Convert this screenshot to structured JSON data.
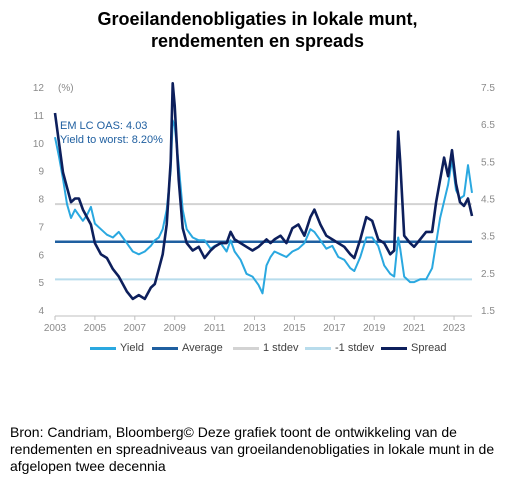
{
  "title_line1": "Groeilandenobligaties in lokale munt,",
  "title_line2": "rendementen en spreads",
  "annotation_oas": "EM LC OAS: 4.03",
  "annotation_ytw": "Yield to worst: 8.20%",
  "y_unit_left": "(%)",
  "source_text": "Bron: Candriam, Bloomberg© Deze grafiek toont de ontwikkeling van de rendementen en spreadniveaus van groeilandenobligaties in lokale munt in de afgelopen twee decennia",
  "colors": {
    "yield": "#2aa8e0",
    "average": "#1f5fa0",
    "plus_stdev": "#d3d3d3",
    "minus_stdev": "#b8dcec",
    "spread": "#0d1f5c",
    "tick_text": "#8a8a8a"
  },
  "legend": [
    {
      "key": "yield",
      "label": "Yield"
    },
    {
      "key": "average",
      "label": "Average"
    },
    {
      "key": "plus_stdev",
      "label": "1 stdev"
    },
    {
      "key": "minus_stdev",
      "label": "-1 stdev"
    },
    {
      "key": "spread",
      "label": "Spread"
    }
  ],
  "chart_data": {
    "type": "line",
    "title": "Groeilandenobligaties in lokale munt, rendementen en spreads",
    "x_ticks": [
      2003,
      2005,
      2007,
      2009,
      2011,
      2013,
      2015,
      2017,
      2019,
      2021,
      2023
    ],
    "xlim": [
      2003,
      2023.9
    ],
    "ylim_left": [
      4,
      12
    ],
    "ylim_right": [
      1.5,
      7.5
    ],
    "y_ticks_left": [
      4,
      5,
      6,
      7,
      8,
      9,
      10,
      11,
      12
    ],
    "y_ticks_right": [
      1.5,
      2.5,
      3.5,
      4.5,
      5.5,
      6.5,
      7.5
    ],
    "reference_lines": [
      {
        "key": "average",
        "name": "Average",
        "y_left": 6.45
      },
      {
        "key": "plus_stdev",
        "name": "1 stdev",
        "y_left": 7.8
      },
      {
        "key": "minus_stdev",
        "name": "-1 stdev",
        "y_left": 5.1
      }
    ],
    "series": [
      {
        "key": "yield",
        "name": "Yield",
        "axis": "left",
        "x": [
          2003.0,
          2003.2,
          2003.4,
          2003.6,
          2003.8,
          2004.0,
          2004.2,
          2004.4,
          2004.6,
          2004.8,
          2005.0,
          2005.3,
          2005.6,
          2005.9,
          2006.2,
          2006.4,
          2006.6,
          2006.9,
          2007.2,
          2007.5,
          2007.8,
          2008.0,
          2008.2,
          2008.4,
          2008.6,
          2008.8,
          2008.9,
          2009.0,
          2009.2,
          2009.4,
          2009.6,
          2009.9,
          2010.2,
          2010.5,
          2010.8,
          2011.0,
          2011.3,
          2011.6,
          2011.8,
          2012.0,
          2012.3,
          2012.6,
          2012.9,
          2013.2,
          2013.4,
          2013.6,
          2013.8,
          2014.0,
          2014.3,
          2014.6,
          2014.9,
          2015.2,
          2015.5,
          2015.8,
          2016.0,
          2016.3,
          2016.6,
          2016.9,
          2017.2,
          2017.5,
          2017.8,
          2018.0,
          2018.3,
          2018.6,
          2018.9,
          2019.2,
          2019.5,
          2019.8,
          2020.0,
          2020.2,
          2020.3,
          2020.5,
          2020.8,
          2021.0,
          2021.3,
          2021.6,
          2021.9,
          2022.1,
          2022.3,
          2022.5,
          2022.7,
          2022.9,
          2023.1,
          2023.3,
          2023.5,
          2023.7,
          2023.9
        ],
        "y": [
          10.2,
          9.5,
          8.7,
          7.8,
          7.3,
          7.6,
          7.4,
          7.2,
          7.4,
          7.7,
          7.1,
          6.9,
          6.7,
          6.6,
          6.8,
          6.6,
          6.4,
          6.1,
          6.0,
          6.1,
          6.3,
          6.5,
          6.6,
          6.9,
          7.6,
          9.0,
          10.8,
          10.6,
          9.2,
          7.6,
          6.9,
          6.6,
          6.5,
          6.5,
          6.2,
          6.3,
          6.4,
          6.1,
          6.5,
          6.1,
          5.8,
          5.3,
          5.2,
          4.9,
          4.6,
          5.6,
          5.9,
          6.1,
          6.0,
          5.9,
          6.1,
          6.2,
          6.4,
          6.9,
          6.8,
          6.5,
          6.2,
          6.3,
          5.9,
          5.8,
          5.5,
          5.4,
          5.9,
          6.6,
          6.6,
          6.3,
          5.6,
          5.3,
          5.2,
          6.6,
          6.2,
          5.2,
          5.0,
          5.0,
          5.1,
          5.1,
          5.5,
          6.4,
          7.3,
          7.9,
          8.5,
          9.4,
          8.3,
          8.0,
          8.1,
          9.2,
          8.2
        ]
      },
      {
        "key": "spread",
        "name": "Spread",
        "axis": "right",
        "x": [
          2003.0,
          2003.2,
          2003.4,
          2003.6,
          2003.8,
          2004.0,
          2004.2,
          2004.4,
          2004.6,
          2004.8,
          2005.0,
          2005.3,
          2005.6,
          2005.9,
          2006.2,
          2006.4,
          2006.6,
          2006.9,
          2007.2,
          2007.5,
          2007.8,
          2008.0,
          2008.2,
          2008.4,
          2008.6,
          2008.8,
          2008.9,
          2009.0,
          2009.2,
          2009.4,
          2009.6,
          2009.9,
          2010.2,
          2010.5,
          2010.8,
          2011.0,
          2011.3,
          2011.6,
          2011.8,
          2012.0,
          2012.3,
          2012.6,
          2012.9,
          2013.2,
          2013.4,
          2013.6,
          2013.8,
          2014.0,
          2014.3,
          2014.6,
          2014.9,
          2015.2,
          2015.5,
          2015.8,
          2016.0,
          2016.3,
          2016.6,
          2016.9,
          2017.2,
          2017.5,
          2017.8,
          2018.0,
          2018.3,
          2018.6,
          2018.9,
          2019.2,
          2019.5,
          2019.8,
          2020.0,
          2020.2,
          2020.3,
          2020.5,
          2020.8,
          2021.0,
          2021.3,
          2021.6,
          2021.9,
          2022.1,
          2022.3,
          2022.5,
          2022.7,
          2022.9,
          2023.1,
          2023.3,
          2023.5,
          2023.7,
          2023.9
        ],
        "y": [
          6.8,
          6.0,
          5.2,
          4.8,
          4.4,
          4.5,
          4.5,
          4.2,
          4.0,
          3.8,
          3.3,
          3.0,
          2.9,
          2.6,
          2.4,
          2.2,
          2.0,
          1.8,
          1.9,
          1.8,
          2.1,
          2.2,
          2.6,
          3.0,
          3.8,
          5.5,
          7.6,
          7.0,
          5.0,
          3.7,
          3.3,
          3.1,
          3.2,
          2.9,
          3.1,
          3.2,
          3.3,
          3.3,
          3.6,
          3.4,
          3.3,
          3.2,
          3.1,
          3.2,
          3.3,
          3.4,
          3.3,
          3.4,
          3.5,
          3.3,
          3.7,
          3.8,
          3.5,
          4.0,
          4.2,
          3.8,
          3.5,
          3.4,
          3.3,
          3.2,
          3.0,
          2.9,
          3.4,
          4.0,
          3.9,
          3.4,
          3.3,
          3.0,
          3.1,
          6.3,
          5.5,
          3.5,
          3.3,
          3.2,
          3.4,
          3.6,
          3.6,
          4.4,
          5.0,
          5.6,
          5.1,
          5.8,
          4.9,
          4.4,
          4.3,
          4.5,
          4.03
        ]
      }
    ]
  }
}
